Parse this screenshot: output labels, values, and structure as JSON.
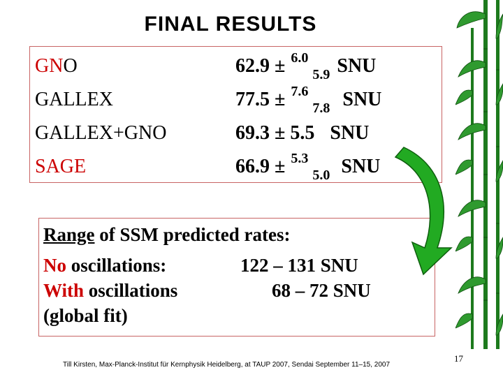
{
  "title": "FINAL RESULTS",
  "results": [
    {
      "name_red": "GN",
      "name_rest": "O",
      "value": "62.9 ±",
      "sup": "6.0",
      "sub": "5.9",
      "unit": "SNU"
    },
    {
      "name": "GALLEX",
      "value": "77.5 ±",
      "sup": "7.6",
      "sub": "7.8",
      "unit": "SNU"
    },
    {
      "name": "GALLEX+GNO",
      "value": "69.3 ± 5.5",
      "unit": "SNU"
    },
    {
      "name": "SAGE",
      "value": "66.9 ±",
      "sup": "5.3",
      "sub": "5.0",
      "unit": "SNU"
    }
  ],
  "range": {
    "heading_underlined": "Range",
    "heading_rest": " of SSM predicted rates:",
    "no_osc_red": "No",
    "no_osc_rest": " oscillations:",
    "no_osc_value": "122 – 131 SNU",
    "with_osc_red": "With",
    "with_osc_rest": " oscillations",
    "with_osc_value": "68 – 72 SNU",
    "global_fit": "(global fit)"
  },
  "footer": "Till Kirsten,  Max-Planck-Institut für Kernphysik Heidelberg, at TAUP 2007, Sendai  September 11–15, 2007",
  "page_number": "17",
  "colors": {
    "accent_red": "#cc0000",
    "box_border": "#c86464",
    "bamboo_green": "#1d7a1d",
    "arrow_green": "#22aa22"
  },
  "icons": [
    "bamboo-decoration",
    "curved-arrow-icon"
  ]
}
